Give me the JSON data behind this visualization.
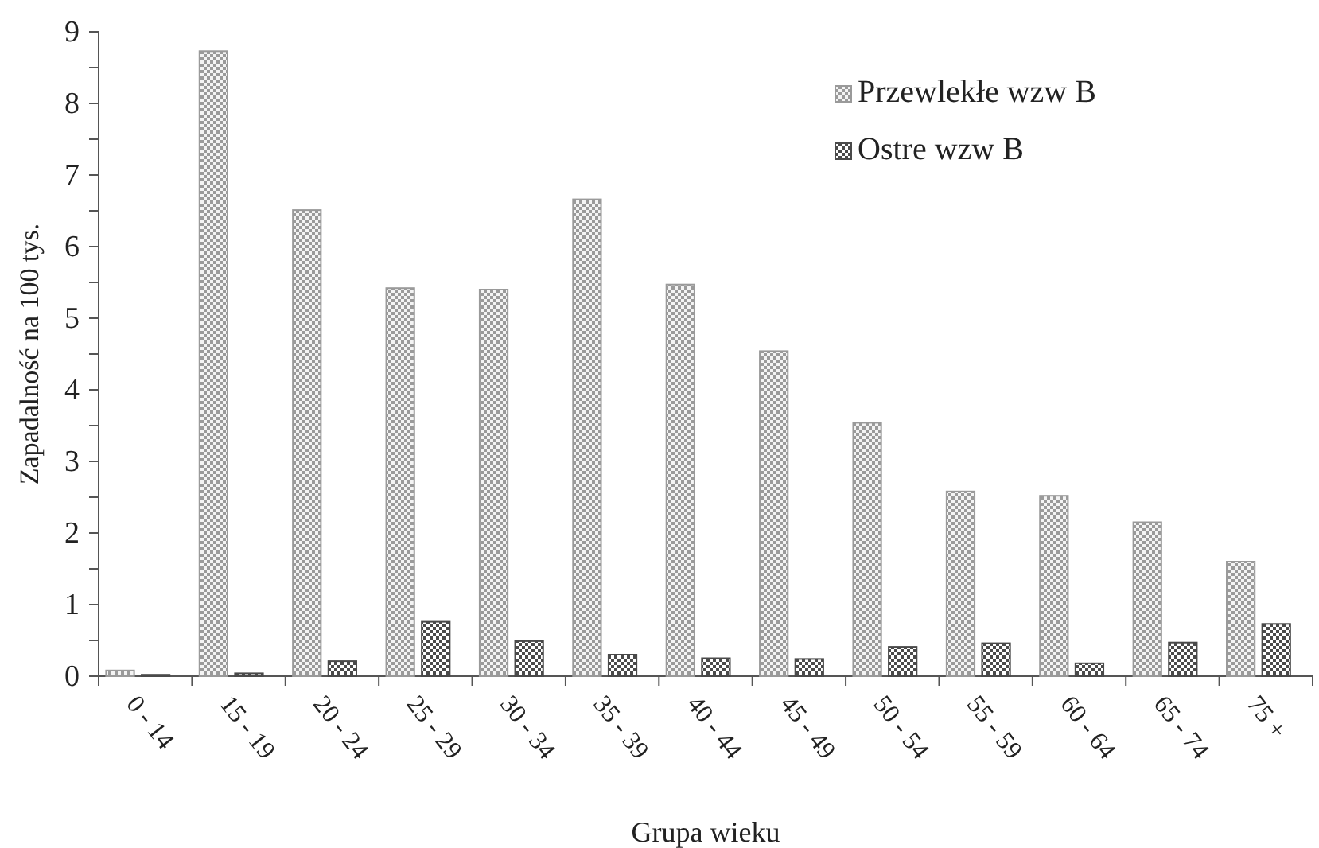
{
  "chart_data": {
    "type": "bar",
    "xlabel": "Grupa wieku",
    "ylabel": "Zapadalność na 100 tys.",
    "categories": [
      "0 - 14",
      "15 - 19",
      "20 - 24",
      "25 - 29",
      "30 - 34",
      "35 - 39",
      "40 - 44",
      "45 - 49",
      "50 - 54",
      "55 - 59",
      "60 - 64",
      "65 - 74",
      "75 +"
    ],
    "series": [
      {
        "name": "Przewlekłe wzw B",
        "color": "#9a9a9a",
        "values": [
          0.08,
          8.73,
          6.51,
          5.42,
          5.4,
          6.66,
          5.47,
          4.54,
          3.54,
          2.58,
          2.52,
          2.15,
          1.6
        ]
      },
      {
        "name": "Ostre wzw B",
        "color": "#4a4a4a",
        "values": [
          0.02,
          0.04,
          0.21,
          0.76,
          0.49,
          0.3,
          0.25,
          0.24,
          0.41,
          0.46,
          0.18,
          0.47,
          0.73
        ]
      }
    ],
    "ylim": [
      0,
      9
    ],
    "yticks": [
      0,
      {
        "value": 0.5,
        "label": null
      },
      1,
      {
        "value": 1.5,
        "label": null
      },
      2,
      {
        "value": 2.5,
        "label": null
      },
      3,
      {
        "value": 3.5,
        "label": null
      },
      4,
      {
        "value": 4.5,
        "label": null
      },
      5,
      {
        "value": 5.5,
        "label": null
      },
      6,
      {
        "value": 6.5,
        "label": null
      },
      7,
      {
        "value": 7.5,
        "label": null
      },
      8,
      {
        "value": 8.5,
        "label": null
      },
      9
    ],
    "grid": false,
    "legend": "top right"
  }
}
